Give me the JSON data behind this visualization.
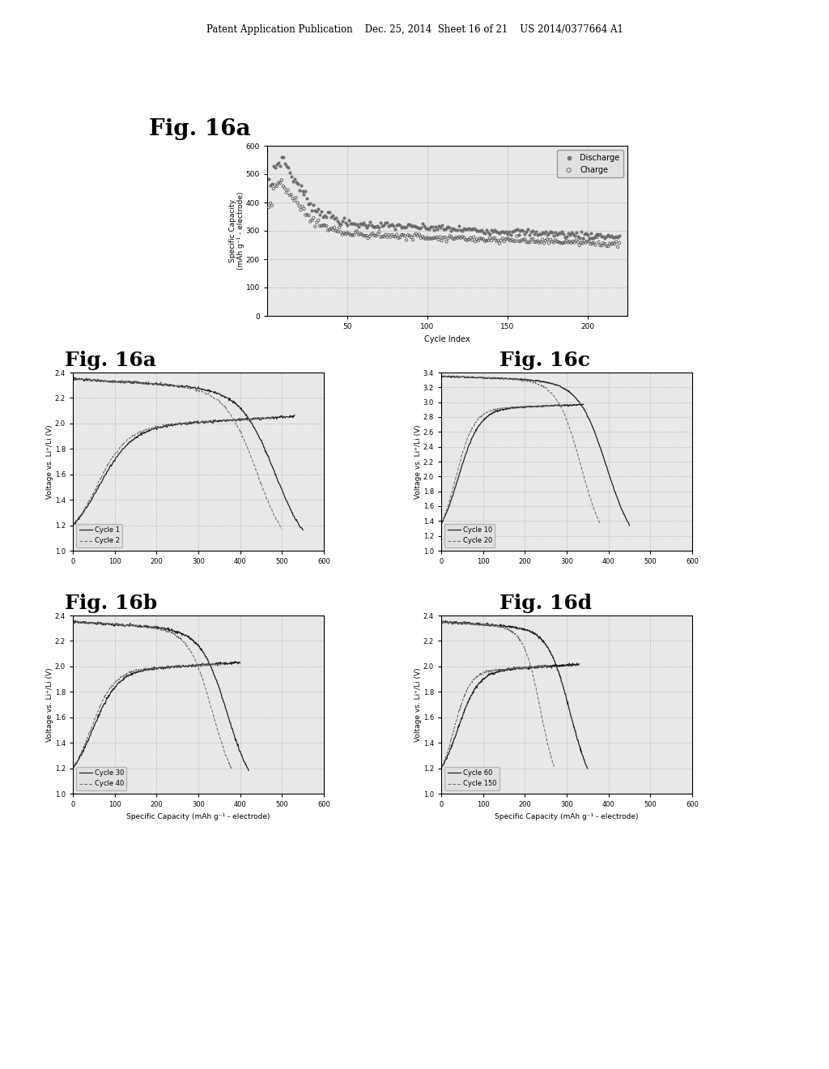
{
  "page_header": "Patent Application Publication    Dec. 25, 2014  Sheet 16 of 21    US 2014/0377664 A1",
  "background_color": "#ffffff",
  "plot_bg_color": "#e8e8e8",
  "grid_color": "#999999",
  "top_plot": {
    "fig_label": "Fig. 16a",
    "xlabel": "Cycle Index",
    "ylabel": "Specific Capacity\n(mAh g⁻¹ - electrode)",
    "xlim": [
      0,
      225
    ],
    "ylim": [
      0,
      600
    ],
    "xticks": [
      50,
      100,
      150,
      200
    ],
    "yticks": [
      0,
      100,
      200,
      300,
      400,
      500,
      600
    ],
    "legend": [
      "Discharge",
      "Charge"
    ]
  },
  "voltage_plots": [
    {
      "fig_label": "Fig. 16a",
      "legend_lines": [
        "Cycle 1",
        "Cycle 2"
      ],
      "xlabel": "",
      "ylabel": "Voltage vs. Li⁺/Li (V)",
      "xlim": [
        0,
        600
      ],
      "ylim": [
        1.0,
        2.4
      ],
      "xticks": [
        0,
        100,
        200,
        300,
        400,
        500,
        600
      ],
      "yticks": [
        1.0,
        1.2,
        1.4,
        1.6,
        1.8,
        2.0,
        2.2,
        2.4
      ],
      "cap_d1": 550,
      "cap_c1": 530,
      "cap_d2": 500,
      "cap_c2": 480,
      "v_high": 2.35,
      "v_low": 1.05,
      "v_plat_d": 1.75,
      "v_plat_c": 1.95,
      "legend_loc": "lower left"
    },
    {
      "fig_label": "Fig. 16c",
      "legend_lines": [
        "Cycle 10",
        "Cycle 20"
      ],
      "xlabel": "",
      "ylabel": "Voltage vs. Li⁺/Li (V)",
      "xlim": [
        0,
        600
      ],
      "ylim": [
        1.0,
        3.4
      ],
      "xticks": [
        0,
        100,
        200,
        300,
        400,
        500,
        600
      ],
      "yticks": [
        1.0,
        1.2,
        1.4,
        1.6,
        1.8,
        2.0,
        2.2,
        2.4,
        2.6,
        2.8,
        3.0,
        3.2,
        3.4
      ],
      "cap_d1": 450,
      "cap_c1": 340,
      "cap_d2": 380,
      "cap_c2": 290,
      "v_high": 3.35,
      "v_low": 1.05,
      "v_plat_d": 1.75,
      "v_plat_c": 2.9,
      "legend_loc": "lower left"
    },
    {
      "fig_label": "Fig. 16b",
      "legend_lines": [
        "Cycle 30",
        "Cycle 40"
      ],
      "xlabel": "Specific Capacity (mAh g⁻¹ - electrode)",
      "ylabel": "Voltage vs. Li⁺/Li (V)",
      "xlim": [
        0,
        600
      ],
      "ylim": [
        1.0,
        2.4
      ],
      "xticks": [
        0,
        100,
        200,
        300,
        400,
        500,
        600
      ],
      "yticks": [
        1.0,
        1.2,
        1.4,
        1.6,
        1.8,
        2.0,
        2.2,
        2.4
      ],
      "cap_d1": 420,
      "cap_c1": 400,
      "cap_d2": 380,
      "cap_c2": 360,
      "v_high": 2.35,
      "v_low": 1.05,
      "v_plat_d": 1.75,
      "v_plat_c": 1.95,
      "legend_loc": "lower left"
    },
    {
      "fig_label": "Fig. 16d",
      "legend_lines": [
        "Cycle 60",
        "Cycle 150"
      ],
      "xlabel": "Specific Capacity (mAh g⁻¹ - electrode)",
      "ylabel": "Voltage vs. Li⁺/Li (V)",
      "xlim": [
        0,
        600
      ],
      "ylim": [
        1.0,
        2.4
      ],
      "xticks": [
        0,
        100,
        200,
        300,
        400,
        500,
        600
      ],
      "yticks": [
        1.0,
        1.2,
        1.4,
        1.6,
        1.8,
        2.0,
        2.2,
        2.4
      ],
      "cap_d1": 350,
      "cap_c1": 330,
      "cap_d2": 270,
      "cap_c2": 255,
      "v_high": 2.35,
      "v_low": 1.05,
      "v_plat_d": 1.75,
      "v_plat_c": 1.95,
      "legend_loc": "lower left"
    }
  ]
}
